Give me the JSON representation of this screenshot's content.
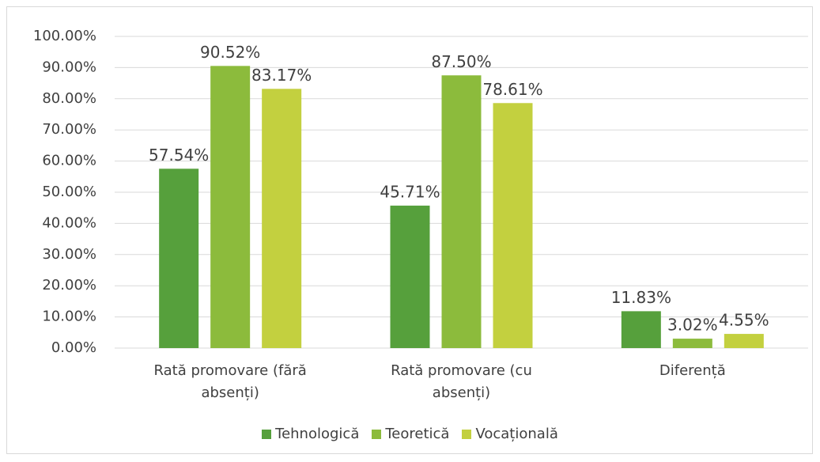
{
  "chart_data": {
    "type": "bar",
    "categories": [
      "Rată promovare (fără absenți)",
      "Rată promovare (cu absenți)",
      "Diferență"
    ],
    "series": [
      {
        "name": "Tehnologică",
        "color": "#56a03c",
        "values": [
          57.54,
          45.71,
          11.83
        ],
        "value_labels": [
          "57.54%",
          "45.71%",
          "11.83%"
        ]
      },
      {
        "name": "Teoretică",
        "color": "#8cbb3c",
        "values": [
          90.52,
          87.5,
          3.02
        ],
        "value_labels": [
          "90.52%",
          "87.50%",
          "3.02%"
        ]
      },
      {
        "name": "Vocațională",
        "color": "#c3d03f",
        "values": [
          83.17,
          78.61,
          4.55
        ],
        "value_labels": [
          "83.17%",
          "78.61%",
          "4.55%"
        ]
      }
    ],
    "ylim": [
      0,
      100
    ],
    "yticks": [
      {
        "value": 0,
        "label": "0.00%"
      },
      {
        "value": 10,
        "label": "10.00%"
      },
      {
        "value": 20,
        "label": "20.00%"
      },
      {
        "value": 30,
        "label": "30.00%"
      },
      {
        "value": 40,
        "label": "40.00%"
      },
      {
        "value": 50,
        "label": "50.00%"
      },
      {
        "value": 60,
        "label": "60.00%"
      },
      {
        "value": 70,
        "label": "70.00%"
      },
      {
        "value": 80,
        "label": "80.00%"
      },
      {
        "value": 90,
        "label": "90.00%"
      },
      {
        "value": 100,
        "label": "100.00%"
      }
    ],
    "grid": true,
    "legend": "bottom"
  }
}
